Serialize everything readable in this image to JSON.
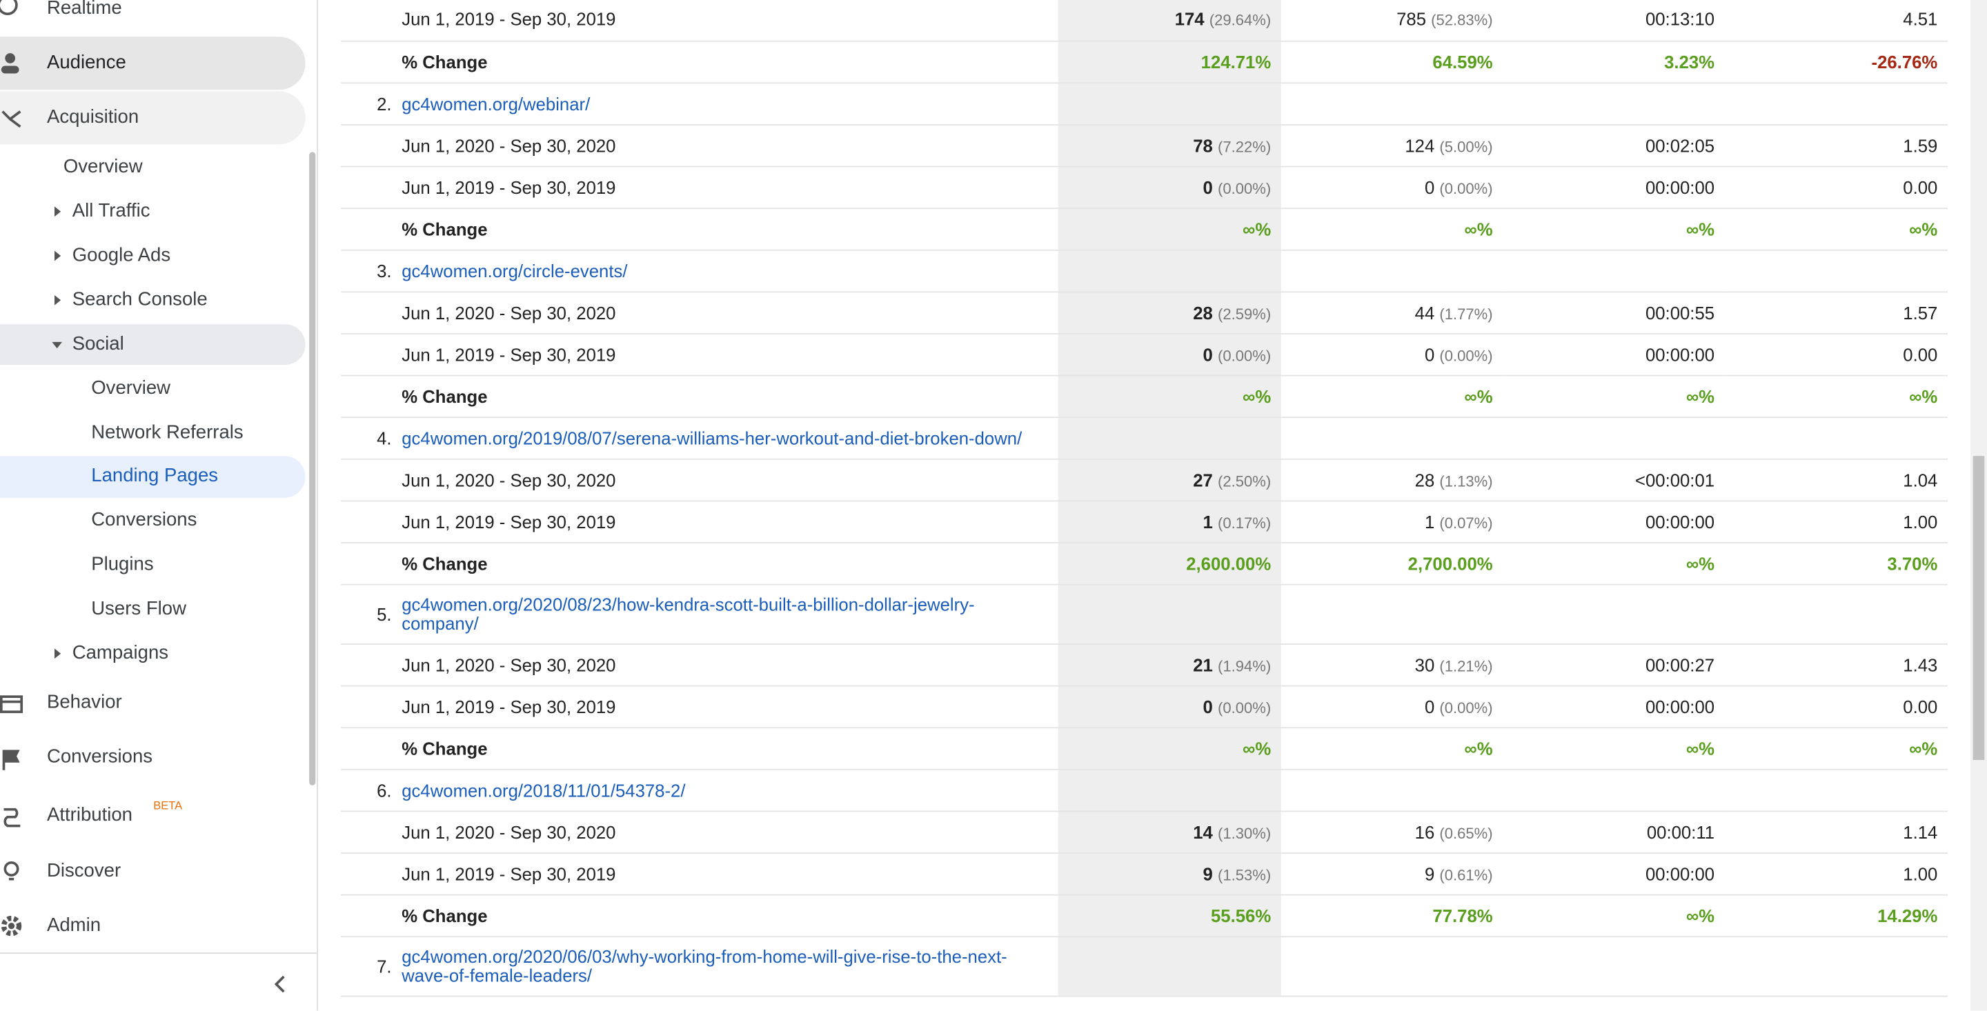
{
  "sidebar": {
    "items": [
      "Realtime",
      "Audience",
      "Acquisition",
      "Overview",
      "All Traffic",
      "Google Ads",
      "Search Console",
      "Social",
      "Overview",
      "Network Referrals",
      "Landing Pages",
      "Conversions",
      "Plugins",
      "Users Flow",
      "Campaigns",
      "Behavior",
      "Conversions",
      "Attribution",
      "Discover",
      "Admin"
    ],
    "badge": "BETA"
  },
  "table": {
    "top": {
      "periods": [
        {
          "label": "Jun 1, 2019 - Sep 30, 2019",
          "cells": [
            {
              "value": "174",
              "pct": "(29.64%)"
            },
            {
              "value": "785",
              "pct": "(52.83%)"
            },
            {
              "value": "00:13:10"
            },
            {
              "value": "4.51"
            }
          ]
        }
      ],
      "change": {
        "label": "% Change",
        "values": [
          "124.71%",
          "64.59%",
          "3.23%",
          "-26.76%"
        ]
      }
    },
    "groups": [
      {
        "index": "2.",
        "url": "gc4women.org/webinar/",
        "periods": [
          {
            "label": "Jun 1, 2020 - Sep 30, 2020",
            "cells": [
              {
                "value": "78",
                "pct": "(7.22%)"
              },
              {
                "value": "124",
                "pct": "(5.00%)"
              },
              {
                "value": "00:02:05"
              },
              {
                "value": "1.59"
              }
            ]
          },
          {
            "label": "Jun 1, 2019 - Sep 30, 2019",
            "cells": [
              {
                "value": "0",
                "pct": "(0.00%)"
              },
              {
                "value": "0",
                "pct": "(0.00%)"
              },
              {
                "value": "00:00:00"
              },
              {
                "value": "0.00"
              }
            ]
          }
        ],
        "change": {
          "label": "% Change",
          "values": [
            "∞%",
            "∞%",
            "∞%",
            "∞%"
          ]
        }
      },
      {
        "index": "3.",
        "url": "gc4women.org/circle-events/",
        "periods": [
          {
            "label": "Jun 1, 2020 - Sep 30, 2020",
            "cells": [
              {
                "value": "28",
                "pct": "(2.59%)"
              },
              {
                "value": "44",
                "pct": "(1.77%)"
              },
              {
                "value": "00:00:55"
              },
              {
                "value": "1.57"
              }
            ]
          },
          {
            "label": "Jun 1, 2019 - Sep 30, 2019",
            "cells": [
              {
                "value": "0",
                "pct": "(0.00%)"
              },
              {
                "value": "0",
                "pct": "(0.00%)"
              },
              {
                "value": "00:00:00"
              },
              {
                "value": "0.00"
              }
            ]
          }
        ],
        "change": {
          "label": "% Change",
          "values": [
            "∞%",
            "∞%",
            "∞%",
            "∞%"
          ]
        }
      },
      {
        "index": "4.",
        "url": "gc4women.org/2019/08/07/serena-williams-her-workout-and-diet-broken-down/",
        "periods": [
          {
            "label": "Jun 1, 2020 - Sep 30, 2020",
            "cells": [
              {
                "value": "27",
                "pct": "(2.50%)"
              },
              {
                "value": "28",
                "pct": "(1.13%)"
              },
              {
                "value": "<00:00:01"
              },
              {
                "value": "1.04"
              }
            ]
          },
          {
            "label": "Jun 1, 2019 - Sep 30, 2019",
            "cells": [
              {
                "value": "1",
                "pct": "(0.17%)"
              },
              {
                "value": "1",
                "pct": "(0.07%)"
              },
              {
                "value": "00:00:00"
              },
              {
                "value": "1.00"
              }
            ]
          }
        ],
        "change": {
          "label": "% Change",
          "values": [
            "2,600.00%",
            "2,700.00%",
            "∞%",
            "3.70%"
          ]
        }
      },
      {
        "index": "5.",
        "url": "gc4women.org/2020/08/23/how-kendra-scott-built-a-billion-dollar-jewelry-company/",
        "periods": [
          {
            "label": "Jun 1, 2020 - Sep 30, 2020",
            "cells": [
              {
                "value": "21",
                "pct": "(1.94%)"
              },
              {
                "value": "30",
                "pct": "(1.21%)"
              },
              {
                "value": "00:00:27"
              },
              {
                "value": "1.43"
              }
            ]
          },
          {
            "label": "Jun 1, 2019 - Sep 30, 2019",
            "cells": [
              {
                "value": "0",
                "pct": "(0.00%)"
              },
              {
                "value": "0",
                "pct": "(0.00%)"
              },
              {
                "value": "00:00:00"
              },
              {
                "value": "0.00"
              }
            ]
          }
        ],
        "change": {
          "label": "% Change",
          "values": [
            "∞%",
            "∞%",
            "∞%",
            "∞%"
          ]
        }
      },
      {
        "index": "6.",
        "url": "gc4women.org/2018/11/01/54378-2/",
        "periods": [
          {
            "label": "Jun 1, 2020 - Sep 30, 2020",
            "cells": [
              {
                "value": "14",
                "pct": "(1.30%)"
              },
              {
                "value": "16",
                "pct": "(0.65%)"
              },
              {
                "value": "00:00:11"
              },
              {
                "value": "1.14"
              }
            ]
          },
          {
            "label": "Jun 1, 2019 - Sep 30, 2019",
            "cells": [
              {
                "value": "9",
                "pct": "(1.53%)"
              },
              {
                "value": "9",
                "pct": "(0.61%)"
              },
              {
                "value": "00:00:00"
              },
              {
                "value": "1.00"
              }
            ]
          }
        ],
        "change": {
          "label": "% Change",
          "values": [
            "55.56%",
            "77.78%",
            "∞%",
            "14.29%"
          ]
        }
      },
      {
        "index": "7.",
        "url": "gc4women.org/2020/06/03/why-working-from-home-will-give-rise-to-the-next-wave-of-female-leaders/",
        "periods": [],
        "change": null
      }
    ]
  }
}
